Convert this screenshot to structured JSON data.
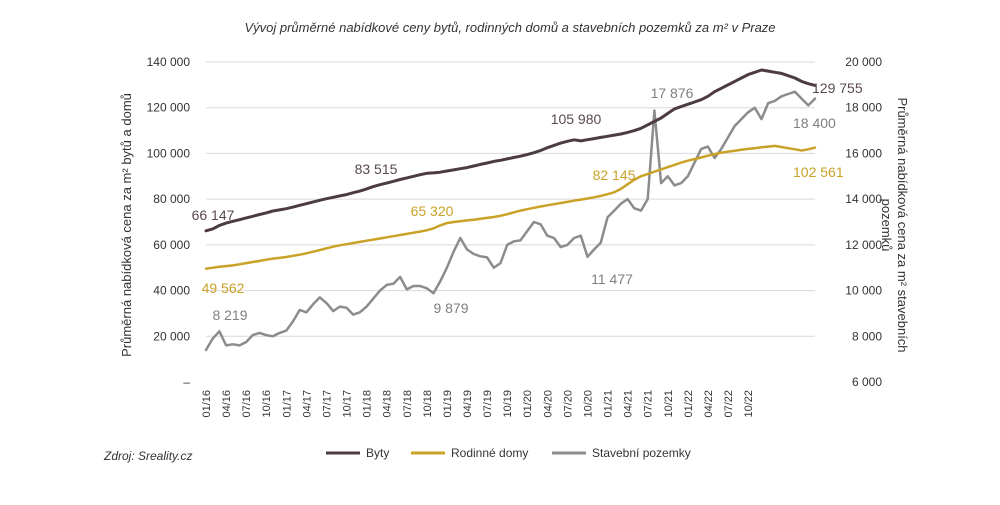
{
  "chart_data": {
    "type": "line",
    "title": "Vývoj průměrné nabídkové ceny bytů, rodinných domů a stavebních pozemků za m² v Praze",
    "source": "Zdroj: Sreality.cz",
    "ylabel_left": "Průměrná nabídková cena za m² bytů a domů",
    "ylabel_right": "Průměrná nabídková cena za m² stavebních pozemků",
    "y_left": {
      "ylim": [
        0,
        140000
      ],
      "ticks": [
        "–",
        "20 000",
        "40 000",
        "60 000",
        "80 000",
        "100 000",
        "120 000",
        "140 000"
      ]
    },
    "y_right": {
      "ylim": [
        6000,
        20000
      ],
      "ticks": [
        "6 000",
        "8 000",
        "10 000",
        "12 000",
        "14 000",
        "16 000",
        "18 000",
        "20 000"
      ]
    },
    "x_tick_labels": [
      "01/16",
      "04/16",
      "07/16",
      "10/16",
      "01/17",
      "04/17",
      "07/17",
      "10/17",
      "01/18",
      "04/18",
      "07/18",
      "10/18",
      "01/19",
      "04/19",
      "07/19",
      "10/19",
      "01/20",
      "04/20",
      "07/20",
      "10/20",
      "01/21",
      "04/21",
      "07/21",
      "10/21",
      "01/22",
      "04/22",
      "07/22",
      "10/22"
    ],
    "x_start": "01/16",
    "x_end": "12/22",
    "grid": "horizontal",
    "legend_position": "bottom",
    "colors": {
      "byty": "#4d3b42",
      "domy": "#c9a227",
      "pozemky": "#8c8c8c"
    },
    "series": [
      {
        "name": "Byty",
        "axis": "left",
        "values": [
          66147,
          67000,
          68500,
          69500,
          70300,
          71000,
          71800,
          72500,
          73300,
          74000,
          74800,
          75300,
          75800,
          76500,
          77300,
          78000,
          78800,
          79500,
          80200,
          80800,
          81400,
          82000,
          82800,
          83515,
          84500,
          85500,
          86300,
          87000,
          87800,
          88600,
          89300,
          90000,
          90700,
          91300,
          91500,
          91800,
          92300,
          92800,
          93300,
          93800,
          94500,
          95200,
          95800,
          96500,
          97000,
          97600,
          98200,
          98800,
          99500,
          100300,
          101300,
          102500,
          103500,
          104500,
          105300,
          105980,
          105500,
          106000,
          106500,
          107000,
          107500,
          108000,
          108500,
          109200,
          110000,
          111000,
          112500,
          114000,
          115500,
          117500,
          119500,
          120500,
          121500,
          122500,
          123500,
          125000,
          127000,
          128500,
          130000,
          131500,
          133000,
          134500,
          135500,
          136500,
          136000,
          135500,
          135000,
          134000,
          133000,
          131500,
          130500,
          129755
        ]
      },
      {
        "name": "Rodinné domy",
        "axis": "left",
        "values": [
          49562,
          50000,
          50400,
          50700,
          51000,
          51500,
          52000,
          52500,
          53000,
          53500,
          54000,
          54300,
          54700,
          55200,
          55700,
          56300,
          57000,
          57700,
          58500,
          59200,
          59800,
          60300,
          60800,
          61300,
          61800,
          62300,
          62800,
          63300,
          63800,
          64300,
          64800,
          65320,
          65800,
          66400,
          67200,
          68500,
          69500,
          70000,
          70300,
          70700,
          71000,
          71400,
          71800,
          72200,
          72700,
          73400,
          74200,
          75000,
          75600,
          76200,
          76800,
          77300,
          77800,
          78300,
          78800,
          79300,
          79800,
          80300,
          80800,
          81400,
          82145,
          83000,
          84500,
          86500,
          88500,
          90000,
          91000,
          92000,
          93000,
          94000,
          95000,
          96000,
          96800,
          97500,
          98200,
          99000,
          99700,
          100300,
          100800,
          101200,
          101600,
          102000,
          102300,
          102700,
          103000,
          103300,
          102800,
          102300,
          101800,
          101300,
          101800,
          102561
        ]
      },
      {
        "name": "Stavební pozemky",
        "axis": "right",
        "values": [
          7400,
          7900,
          8219,
          7600,
          7650,
          7600,
          7750,
          8050,
          8150,
          8050,
          8000,
          8150,
          8250,
          8650,
          9150,
          9050,
          9400,
          9700,
          9450,
          9100,
          9300,
          9250,
          8950,
          9050,
          9300,
          9650,
          10000,
          10250,
          10300,
          10600,
          10050,
          10200,
          10200,
          10100,
          9879,
          10400,
          11000,
          11700,
          12300,
          11800,
          11600,
          11500,
          11450,
          11000,
          11200,
          12000,
          12150,
          12200,
          12600,
          13000,
          12900,
          12400,
          12300,
          11900,
          12000,
          12300,
          12400,
          11477,
          11800,
          12100,
          13200,
          13500,
          13800,
          14000,
          13600,
          13500,
          14000,
          17876,
          14700,
          15000,
          14600,
          14700,
          15000,
          15600,
          16200,
          16300,
          15800,
          16200,
          16700,
          17200,
          17500,
          17800,
          18000,
          17500,
          18200,
          18300,
          18500,
          18600,
          18700,
          18400,
          18100,
          18400
        ]
      }
    ],
    "annotations": [
      {
        "text": "66 147",
        "series": "Byty"
      },
      {
        "text": "83 515",
        "series": "Byty"
      },
      {
        "text": "105 980",
        "series": "Byty"
      },
      {
        "text": "129 755",
        "series": "Byty"
      },
      {
        "text": "49 562",
        "series": "Rodinné domy"
      },
      {
        "text": "65 320",
        "series": "Rodinné domy"
      },
      {
        "text": "82 145",
        "series": "Rodinné domy"
      },
      {
        "text": "102 561",
        "series": "Rodinné domy"
      },
      {
        "text": "8 219",
        "series": "Stavební pozemky"
      },
      {
        "text": "9 879",
        "series": "Stavební pozemky"
      },
      {
        "text": "11 477",
        "series": "Stavební pozemky"
      },
      {
        "text": "17 876",
        "series": "Stavební pozemky"
      },
      {
        "text": "18 400",
        "series": "Stavební pozemky"
      }
    ]
  }
}
